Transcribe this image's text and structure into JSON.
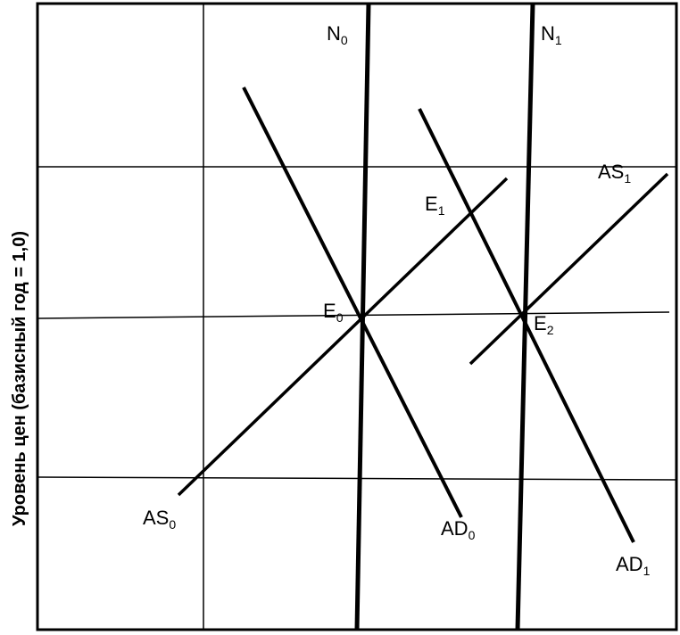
{
  "diagram": {
    "y_axis_label": "Уровень цен (базисный год = 1,0)",
    "curves": {
      "N0": {
        "name": "N",
        "sub": "0"
      },
      "N1": {
        "name": "N",
        "sub": "1"
      },
      "AS0": {
        "name": "AS",
        "sub": "0"
      },
      "AS1": {
        "name": "AS",
        "sub": "1"
      },
      "AD0": {
        "name": "AD",
        "sub": "0"
      },
      "AD1": {
        "name": "AD",
        "sub": "1"
      }
    },
    "points": {
      "E0": {
        "name": "E",
        "sub": "0"
      },
      "E1": {
        "name": "E",
        "sub": "1"
      },
      "E2": {
        "name": "E",
        "sub": "2"
      }
    },
    "colors": {
      "ink": "#000000",
      "background": "#ffffff"
    }
  }
}
